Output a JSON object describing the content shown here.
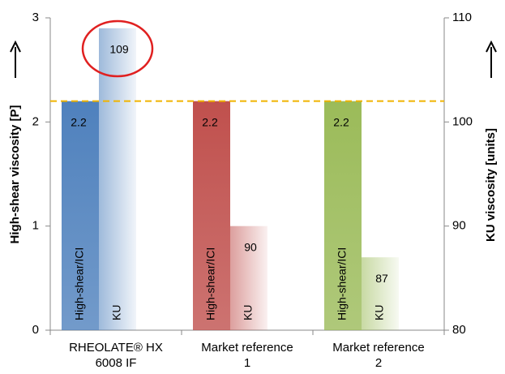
{
  "chart_data": {
    "type": "bar",
    "categories": [
      [
        "RHEOLATE® HX",
        "6008 IF"
      ],
      [
        "Market reference",
        "1"
      ],
      [
        "Market reference",
        "2"
      ]
    ],
    "colors": [
      "#4f81bd",
      "#c0504d",
      "#9bbb59"
    ],
    "series": [
      {
        "name": "High-shear/ICI",
        "values": [
          2.2,
          2.2,
          2.2
        ],
        "axis": "y"
      },
      {
        "name": "KU",
        "values": [
          109,
          90,
          87
        ],
        "axis": "y2"
      }
    ],
    "ylabel": "High-shear viscosity [P]",
    "y2label": "KU viscosity [units]",
    "ylim": [
      0,
      3
    ],
    "yticks": [
      0,
      1,
      2,
      3
    ],
    "y2lim": [
      80,
      110
    ],
    "y2ticks": [
      80,
      90,
      100,
      110
    ],
    "reference_line": {
      "value": 2.2,
      "color": "#f0b400"
    }
  }
}
